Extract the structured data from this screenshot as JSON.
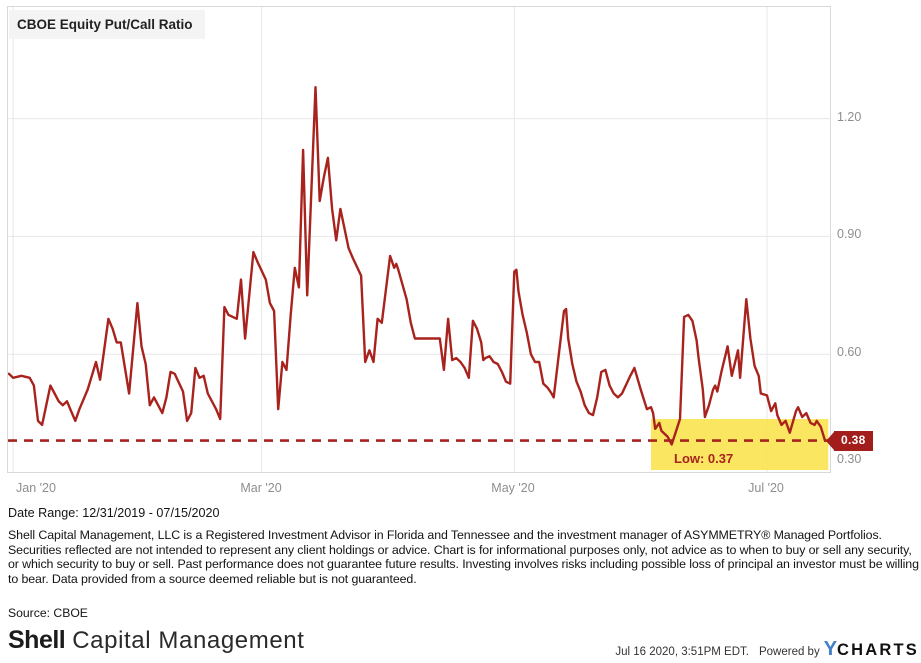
{
  "header": {
    "title": "CBOE Equity Put/Call Ratio"
  },
  "chart_data": {
    "type": "line",
    "title": "CBOE Equity Put/Call Ratio",
    "xlabel": "",
    "ylabel": "",
    "x_unit": "days since 12/31/2019",
    "x_range_days": [
      0,
      197
    ],
    "ylim": [
      0.3,
      1.485
    ],
    "grid": true,
    "legend_position": "none",
    "line_color": "#a8231e",
    "dashed_line_color": "#a8231e",
    "highlight_color": "#fbe24b",
    "tag_color": "#a31d1d",
    "y_ticks": [
      {
        "label": "1.20",
        "value": 1.2
      },
      {
        "label": "0.90",
        "value": 0.9
      },
      {
        "label": "0.60",
        "value": 0.6
      },
      {
        "label": "0.30",
        "value": 0.3
      }
    ],
    "x_ticks": [
      {
        "label": "Jan '20",
        "day": 1
      },
      {
        "label": "Mar '20",
        "day": 61
      },
      {
        "label": "May '20",
        "day": 122
      },
      {
        "label": "Jul '20",
        "day": 183
      }
    ],
    "last_value": 0.38,
    "last_value_label": "0.38",
    "low_value": 0.37,
    "low_label": "Low: 0.37",
    "highlight_region": {
      "x_start_day": 155,
      "x_end_day": 197.8,
      "y_top": 0.435,
      "y_bottom": 0.302
    },
    "series": [
      {
        "name": "CBOE Equity Put/Call Ratio",
        "points": [
          [
            0,
            0.55
          ],
          [
            1,
            0.54
          ],
          [
            3,
            0.545
          ],
          [
            5,
            0.54
          ],
          [
            6,
            0.52
          ],
          [
            7,
            0.43
          ],
          [
            8,
            0.42
          ],
          [
            10,
            0.52
          ],
          [
            11,
            0.5
          ],
          [
            12,
            0.48
          ],
          [
            13,
            0.47
          ],
          [
            14,
            0.48
          ],
          [
            15,
            0.455
          ],
          [
            16,
            0.43
          ],
          [
            17,
            0.46
          ],
          [
            19,
            0.51
          ],
          [
            21,
            0.58
          ],
          [
            22,
            0.535
          ],
          [
            24,
            0.69
          ],
          [
            25,
            0.665
          ],
          [
            26,
            0.63
          ],
          [
            27,
            0.63
          ],
          [
            29,
            0.5
          ],
          [
            31,
            0.73
          ],
          [
            32,
            0.62
          ],
          [
            33,
            0.575
          ],
          [
            34,
            0.47
          ],
          [
            35,
            0.49
          ],
          [
            37,
            0.45
          ],
          [
            38,
            0.49
          ],
          [
            39,
            0.555
          ],
          [
            40,
            0.55
          ],
          [
            42,
            0.505
          ],
          [
            43,
            0.43
          ],
          [
            44,
            0.45
          ],
          [
            45,
            0.565
          ],
          [
            46,
            0.54
          ],
          [
            47,
            0.545
          ],
          [
            48,
            0.5
          ],
          [
            50,
            0.46
          ],
          [
            51,
            0.435
          ],
          [
            52,
            0.72
          ],
          [
            53,
            0.7
          ],
          [
            55,
            0.69
          ],
          [
            56,
            0.79
          ],
          [
            57,
            0.64
          ],
          [
            59,
            0.86
          ],
          [
            60,
            0.835
          ],
          [
            62,
            0.79
          ],
          [
            63,
            0.73
          ],
          [
            64,
            0.71
          ],
          [
            65,
            0.46
          ],
          [
            66,
            0.58
          ],
          [
            67,
            0.56
          ],
          [
            68,
            0.7
          ],
          [
            69,
            0.82
          ],
          [
            70,
            0.77
          ],
          [
            71,
            1.12
          ],
          [
            72,
            0.75
          ],
          [
            74,
            1.28
          ],
          [
            75,
            0.99
          ],
          [
            76,
            1.05
          ],
          [
            77,
            1.1
          ],
          [
            78,
            0.97
          ],
          [
            79,
            0.89
          ],
          [
            80,
            0.97
          ],
          [
            82,
            0.87
          ],
          [
            83,
            0.845
          ],
          [
            85,
            0.8
          ],
          [
            86,
            0.58
          ],
          [
            87,
            0.61
          ],
          [
            88,
            0.58
          ],
          [
            89,
            0.69
          ],
          [
            90,
            0.68
          ],
          [
            92,
            0.85
          ],
          [
            93,
            0.82
          ],
          [
            93.5,
            0.83
          ],
          [
            94,
            0.815
          ],
          [
            96,
            0.74
          ],
          [
            97,
            0.68
          ],
          [
            98,
            0.64
          ],
          [
            101,
            0.64
          ],
          [
            104,
            0.64
          ],
          [
            105,
            0.56
          ],
          [
            106,
            0.69
          ],
          [
            107,
            0.585
          ],
          [
            108,
            0.59
          ],
          [
            109,
            0.58
          ],
          [
            110,
            0.565
          ],
          [
            111,
            0.54
          ],
          [
            112,
            0.685
          ],
          [
            113,
            0.665
          ],
          [
            114,
            0.63
          ],
          [
            114.5,
            0.585
          ],
          [
            115,
            0.59
          ],
          [
            116,
            0.595
          ],
          [
            117,
            0.58
          ],
          [
            118,
            0.575
          ],
          [
            119,
            0.555
          ],
          [
            120,
            0.53
          ],
          [
            121,
            0.525
          ],
          [
            122,
            0.81
          ],
          [
            122.5,
            0.815
          ],
          [
            123,
            0.76
          ],
          [
            124,
            0.7
          ],
          [
            125,
            0.655
          ],
          [
            126,
            0.6
          ],
          [
            127,
            0.58
          ],
          [
            128,
            0.58
          ],
          [
            129,
            0.525
          ],
          [
            130,
            0.515
          ],
          [
            131,
            0.5
          ],
          [
            131.5,
            0.49
          ],
          [
            134,
            0.71
          ],
          [
            134.5,
            0.715
          ],
          [
            135,
            0.64
          ],
          [
            136,
            0.575
          ],
          [
            137,
            0.53
          ],
          [
            138,
            0.505
          ],
          [
            139,
            0.47
          ],
          [
            140,
            0.45
          ],
          [
            141,
            0.445
          ],
          [
            142,
            0.49
          ],
          [
            143,
            0.555
          ],
          [
            144,
            0.56
          ],
          [
            145,
            0.52
          ],
          [
            146,
            0.5
          ],
          [
            147,
            0.49
          ],
          [
            148,
            0.5
          ],
          [
            150,
            0.545
          ],
          [
            151,
            0.565
          ],
          [
            152.5,
            0.51
          ],
          [
            154,
            0.46
          ],
          [
            155,
            0.465
          ],
          [
            155.5,
            0.45
          ],
          [
            156,
            0.41
          ],
          [
            157,
            0.425
          ],
          [
            157.5,
            0.405
          ],
          [
            159,
            0.39
          ],
          [
            160,
            0.37
          ],
          [
            162,
            0.435
          ],
          [
            163,
            0.695
          ],
          [
            164,
            0.7
          ],
          [
            165,
            0.685
          ],
          [
            166,
            0.635
          ],
          [
            166.5,
            0.59
          ],
          [
            167.5,
            0.51
          ],
          [
            168,
            0.44
          ],
          [
            169,
            0.47
          ],
          [
            170,
            0.51
          ],
          [
            170.5,
            0.52
          ],
          [
            171,
            0.505
          ],
          [
            172,
            0.555
          ],
          [
            173.5,
            0.62
          ],
          [
            174.5,
            0.545
          ],
          [
            176,
            0.61
          ],
          [
            176.5,
            0.54
          ],
          [
            178,
            0.74
          ],
          [
            179,
            0.64
          ],
          [
            180,
            0.57
          ],
          [
            181,
            0.545
          ],
          [
            181.5,
            0.5
          ],
          [
            183,
            0.495
          ],
          [
            184,
            0.455
          ],
          [
            185,
            0.475
          ],
          [
            185.5,
            0.445
          ],
          [
            186.5,
            0.42
          ],
          [
            187.5,
            0.43
          ],
          [
            188.5,
            0.4
          ],
          [
            190,
            0.455
          ],
          [
            190.5,
            0.465
          ],
          [
            191.5,
            0.44
          ],
          [
            192.5,
            0.45
          ],
          [
            193.5,
            0.425
          ],
          [
            194.5,
            0.42
          ],
          [
            195,
            0.43
          ],
          [
            196,
            0.415
          ],
          [
            197,
            0.38
          ]
        ]
      }
    ]
  },
  "footer": {
    "date_range": "Date Range: 12/31/2019 - 07/15/2020",
    "disclaimer": "Shell Capital Management, LLC is a Registered Investment Advisor in Florida and Tennessee and the investment manager of ASYMMETRY® Managed Portfolios. Securities reflected are not intended to represent any client holdings or advice. Chart is for informational purposes only, not advice as to when to buy or sell any security, or which security to buy or sell. Past performance does not guarantee future results. Investing involves risks including possible loss of principal an investor must be willing to bear. Data provided from a source deemed reliable but is not guaranteed.",
    "source": "Source: CBOE",
    "brand": {
      "bold": "Shell",
      "light": "Capital Management"
    },
    "timestamp": "Jul 16 2020, 3:51PM EDT.",
    "powered_by": "Powered by",
    "ycharts_y": "Y",
    "ycharts_charts": "CHARTS"
  }
}
